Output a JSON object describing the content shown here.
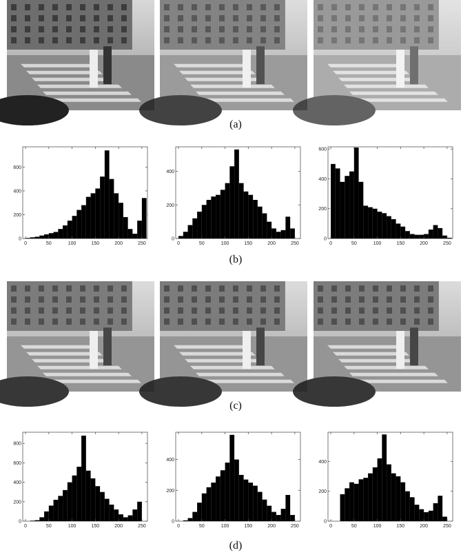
{
  "captions": [
    "(a)",
    "(b)",
    "(c)",
    "(d)"
  ],
  "chart_data": [
    {
      "type": "histogram",
      "bins": [
        0,
        10,
        20,
        30,
        40,
        50,
        60,
        70,
        80,
        90,
        100,
        110,
        120,
        130,
        140,
        150,
        160,
        170,
        180,
        190,
        200,
        210,
        220,
        230,
        240,
        250,
        260
      ],
      "values": [
        5,
        10,
        15,
        25,
        35,
        45,
        55,
        80,
        110,
        150,
        190,
        240,
        280,
        350,
        380,
        420,
        520,
        740,
        500,
        380,
        300,
        180,
        80,
        40,
        150,
        340
      ],
      "xlim": [
        -6,
        262
      ],
      "xticks": [
        0,
        50,
        100,
        150,
        200,
        250
      ],
      "ylim": [
        0,
        770
      ],
      "yticks": [
        0,
        200,
        400,
        600
      ],
      "color": "#000000"
    },
    {
      "type": "histogram",
      "bins": [
        0,
        10,
        20,
        30,
        40,
        50,
        60,
        70,
        80,
        90,
        100,
        110,
        120,
        130,
        140,
        150,
        160,
        170,
        180,
        190,
        200,
        210,
        220,
        230,
        240,
        250,
        260
      ],
      "values": [
        15,
        40,
        80,
        120,
        160,
        200,
        230,
        250,
        260,
        290,
        330,
        430,
        530,
        330,
        280,
        260,
        230,
        190,
        150,
        100,
        60,
        40,
        50,
        130,
        60,
        0
      ],
      "xlim": [
        -6,
        262
      ],
      "xticks": [
        0,
        50,
        100,
        150,
        200,
        250
      ],
      "ylim": [
        0,
        546
      ],
      "yticks": [
        0,
        200,
        400
      ],
      "color": "#000000"
    },
    {
      "type": "histogram",
      "bins": [
        0,
        10,
        20,
        30,
        40,
        50,
        60,
        70,
        80,
        90,
        100,
        110,
        120,
        130,
        140,
        150,
        160,
        170,
        180,
        190,
        200,
        210,
        220,
        230,
        240,
        250,
        260
      ],
      "values": [
        500,
        470,
        380,
        420,
        450,
        610,
        380,
        220,
        210,
        200,
        180,
        170,
        150,
        130,
        100,
        80,
        50,
        30,
        25,
        25,
        30,
        60,
        90,
        70,
        20,
        5
      ],
      "xlim": [
        -6,
        262
      ],
      "xticks": [
        0,
        50,
        100,
        150,
        200,
        250
      ],
      "ylim": [
        0,
        615
      ],
      "yticks": [
        0,
        200,
        400,
        600
      ],
      "color": "#000000"
    },
    {
      "type": "histogram",
      "bins": [
        0,
        10,
        20,
        30,
        40,
        50,
        60,
        70,
        80,
        90,
        100,
        110,
        120,
        130,
        140,
        150,
        160,
        170,
        180,
        190,
        200,
        210,
        220,
        230,
        240,
        250,
        260
      ],
      "values": [
        0,
        5,
        10,
        40,
        100,
        160,
        220,
        260,
        320,
        400,
        470,
        560,
        880,
        520,
        440,
        360,
        300,
        230,
        170,
        120,
        70,
        40,
        60,
        120,
        200,
        0
      ],
      "xlim": [
        -6,
        262
      ],
      "xticks": [
        0,
        50,
        100,
        150,
        200,
        250
      ],
      "ylim": [
        0,
        915
      ],
      "yticks": [
        0,
        200,
        400,
        600,
        800
      ],
      "color": "#000000"
    },
    {
      "type": "histogram",
      "bins": [
        0,
        10,
        20,
        30,
        40,
        50,
        60,
        70,
        80,
        90,
        100,
        110,
        120,
        130,
        140,
        150,
        160,
        170,
        180,
        190,
        200,
        210,
        220,
        230,
        240,
        250,
        260
      ],
      "values": [
        0,
        5,
        20,
        60,
        120,
        180,
        220,
        250,
        290,
        330,
        380,
        560,
        400,
        300,
        270,
        250,
        230,
        190,
        140,
        100,
        60,
        40,
        80,
        170,
        40,
        0
      ],
      "xlim": [
        -6,
        262
      ],
      "xticks": [
        0,
        50,
        100,
        150,
        200,
        250
      ],
      "ylim": [
        0,
        577
      ],
      "yticks": [
        0,
        200,
        400
      ],
      "color": "#000000"
    },
    {
      "type": "histogram",
      "bins": [
        0,
        10,
        20,
        30,
        40,
        50,
        60,
        70,
        80,
        90,
        100,
        110,
        120,
        130,
        140,
        150,
        160,
        170,
        180,
        190,
        200,
        210,
        220,
        230,
        240,
        250,
        260
      ],
      "values": [
        0,
        0,
        180,
        220,
        260,
        250,
        280,
        290,
        320,
        360,
        420,
        580,
        380,
        320,
        300,
        260,
        200,
        160,
        110,
        80,
        60,
        70,
        120,
        170,
        30,
        0
      ],
      "xlim": [
        -6,
        262
      ],
      "xticks": [
        0,
        50,
        100,
        150,
        200,
        250
      ],
      "ylim": [
        0,
        595
      ],
      "yticks": [
        0,
        200,
        400
      ],
      "color": "#000000"
    }
  ]
}
